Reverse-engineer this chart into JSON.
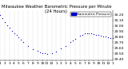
{
  "title": "Milwaukee Weather Barometric Pressure per Minute (24 Hours)",
  "bg_color": "#ffffff",
  "plot_bg_color": "#ffffff",
  "dot_color": "#0000cc",
  "legend_color": "#0000cc",
  "grid_color": "#bbbbbb",
  "x_min": 0,
  "x_max": 1440,
  "y_min": 29.38,
  "y_max": 30.28,
  "y_ticks": [
    29.4,
    29.5,
    29.6,
    29.7,
    29.8,
    29.9,
    30.0,
    30.1,
    30.2
  ],
  "x_tick_positions": [
    0,
    60,
    120,
    180,
    240,
    300,
    360,
    420,
    480,
    540,
    600,
    660,
    720,
    780,
    840,
    900,
    960,
    1020,
    1080,
    1140,
    1200,
    1260,
    1320,
    1380,
    1440
  ],
  "x_tick_labels": [
    "1",
    "2",
    "3",
    "4",
    "5",
    "6",
    "7",
    "8",
    "9",
    "10",
    "11",
    "12",
    "1",
    "2",
    "3",
    "4",
    "5",
    "6",
    "7",
    "8",
    "9",
    "10",
    "11",
    "12",
    "1"
  ],
  "data_x": [
    0,
    30,
    60,
    90,
    120,
    150,
    180,
    210,
    240,
    270,
    300,
    360,
    420,
    480,
    510,
    540,
    570,
    600,
    660,
    720,
    780,
    840,
    900,
    930,
    960,
    1020,
    1050,
    1080,
    1110,
    1140,
    1170,
    1200,
    1230,
    1260,
    1290,
    1320,
    1350,
    1380,
    1410,
    1440
  ],
  "data_y": [
    30.2,
    30.13,
    30.07,
    30.01,
    29.96,
    29.91,
    29.87,
    29.83,
    29.79,
    29.75,
    29.71,
    29.63,
    29.57,
    29.55,
    29.52,
    29.5,
    29.5,
    29.49,
    29.51,
    29.54,
    29.59,
    29.64,
    29.7,
    29.73,
    29.77,
    29.82,
    29.84,
    29.86,
    29.87,
    29.87,
    29.86,
    29.85,
    29.84,
    29.83,
    29.82,
    29.81,
    29.8,
    29.79,
    29.78,
    29.78
  ],
  "legend_label": "Barometric Pressure",
  "title_fontsize": 3.8,
  "tick_fontsize": 3.2,
  "dot_size": 0.8
}
